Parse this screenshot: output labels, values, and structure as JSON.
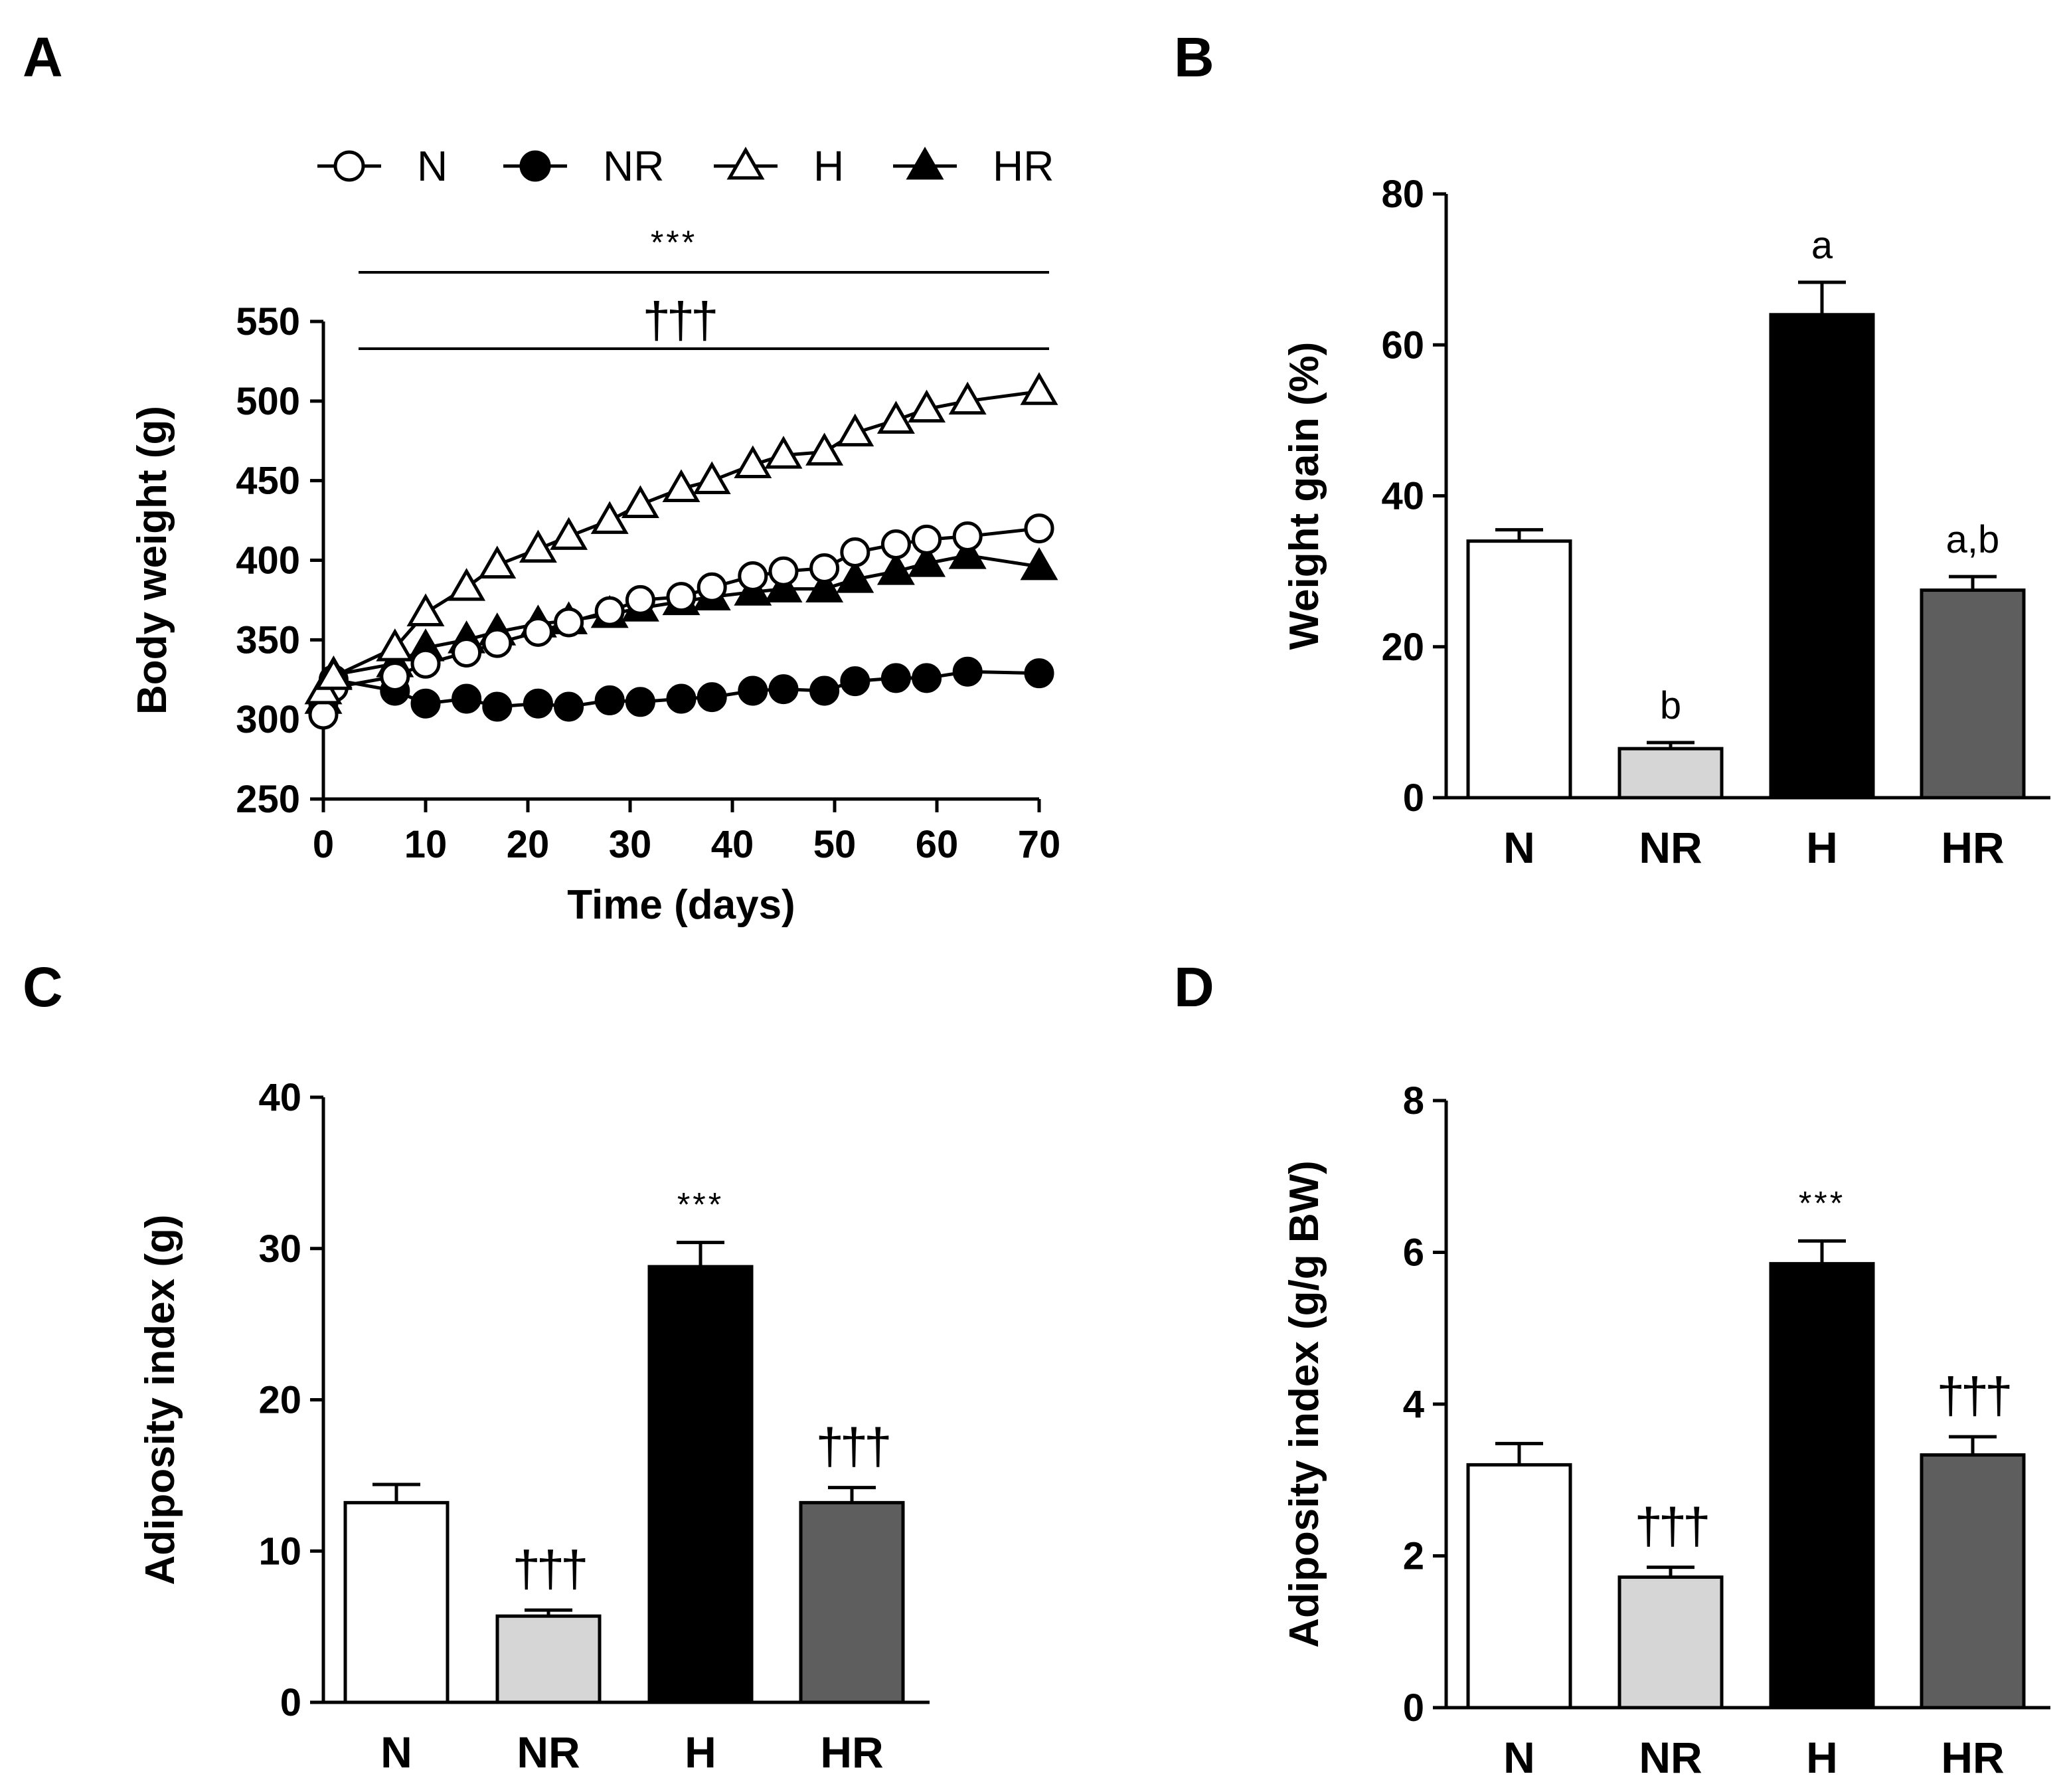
{
  "chart_data": [
    {
      "panel": "A",
      "type": "line",
      "title": "",
      "xlabel": "Time (days)",
      "ylabel": "Body weight (g)",
      "xlim": [
        0,
        70
      ],
      "ylim": [
        250,
        550
      ],
      "xticks": [
        "0",
        "10",
        "20",
        "30",
        "40",
        "50",
        "60",
        "70"
      ],
      "yticks": [
        "250",
        "300",
        "350",
        "400",
        "450",
        "500",
        "550"
      ],
      "legend": [
        "N",
        "NR",
        "H",
        "HR"
      ],
      "legend_position": "top",
      "significance": [
        "***",
        "†††"
      ],
      "series": [
        {
          "name": "N",
          "marker": "open-circle",
          "x": [
            0,
            1,
            7,
            10,
            14,
            17,
            21,
            24,
            28,
            31,
            35,
            38,
            42,
            45,
            49,
            52,
            56,
            59,
            63,
            70
          ],
          "y": [
            303,
            320,
            327,
            335,
            342,
            348,
            355,
            361,
            368,
            375,
            377,
            383,
            390,
            393,
            395,
            405,
            410,
            413,
            415,
            420
          ]
        },
        {
          "name": "NR",
          "marker": "filled-circle",
          "x": [
            0,
            1,
            7,
            10,
            14,
            17,
            21,
            24,
            28,
            31,
            35,
            38,
            42,
            45,
            49,
            52,
            56,
            59,
            63,
            70
          ],
          "y": [
            310,
            325,
            318,
            310,
            313,
            308,
            310,
            308,
            312,
            311,
            313,
            314,
            318,
            319,
            318,
            324,
            326,
            326,
            330,
            329
          ]
        },
        {
          "name": "H",
          "marker": "open-triangle",
          "x": [
            0,
            1,
            7,
            10,
            14,
            17,
            21,
            24,
            28,
            31,
            35,
            38,
            42,
            45,
            49,
            52,
            56,
            59,
            63,
            70
          ],
          "y": [
            318,
            327,
            345,
            367,
            383,
            397,
            407,
            415,
            425,
            435,
            445,
            450,
            460,
            466,
            468,
            480,
            488,
            495,
            500,
            506
          ]
        },
        {
          "name": "HR",
          "marker": "filled-triangle",
          "x": [
            0,
            1,
            7,
            10,
            14,
            17,
            21,
            24,
            28,
            31,
            35,
            38,
            42,
            45,
            49,
            52,
            56,
            59,
            63,
            70
          ],
          "y": [
            312,
            328,
            335,
            345,
            350,
            355,
            360,
            362,
            366,
            370,
            374,
            377,
            380,
            382,
            382,
            388,
            393,
            398,
            403,
            396
          ]
        }
      ]
    },
    {
      "panel": "B",
      "type": "bar",
      "ylabel": "Weight gain  (%)",
      "ylim": [
        0,
        80
      ],
      "yticks": [
        "0",
        "20",
        "40",
        "60",
        "80"
      ],
      "categories": [
        "N",
        "NR",
        "H",
        "HR"
      ],
      "values": [
        34,
        6.5,
        64,
        27.5
      ],
      "errors": [
        1.5,
        0.8,
        4.3,
        1.8
      ],
      "annotations": [
        "",
        "b",
        "a",
        "a,b"
      ]
    },
    {
      "panel": "C",
      "type": "bar",
      "ylabel": "Adiposity index (g)",
      "ylim": [
        0,
        40
      ],
      "yticks": [
        "0",
        "10",
        "20",
        "30",
        "40"
      ],
      "categories": [
        "N",
        "NR",
        "H",
        "HR"
      ],
      "values": [
        13.2,
        5.7,
        28.8,
        13.2
      ],
      "errors": [
        1.2,
        0.4,
        1.6,
        1.0
      ],
      "annotations": [
        "",
        "†††",
        "***",
        "†††"
      ]
    },
    {
      "panel": "D",
      "type": "bar",
      "ylabel": "Adiposity index (g/g BW)",
      "ylim": [
        0,
        8
      ],
      "yticks": [
        "0",
        "2",
        "4",
        "6",
        "8"
      ],
      "categories": [
        "N",
        "NR",
        "H",
        "HR"
      ],
      "values": [
        3.2,
        1.72,
        5.85,
        3.33
      ],
      "errors": [
        0.28,
        0.13,
        0.3,
        0.24
      ],
      "annotations": [
        "",
        "†††",
        "***",
        "†††"
      ]
    }
  ],
  "colors": {
    "N": "#ffffff",
    "NR": "#d6d6d6",
    "H": "#000000",
    "HR": "#5e5e5e",
    "stroke": "#000000"
  }
}
